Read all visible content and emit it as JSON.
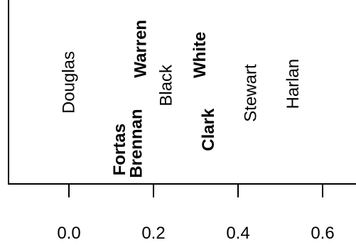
{
  "chart_data": {
    "type": "scatter",
    "title": "",
    "xlabel": "",
    "ylabel": "",
    "xlim": [
      -0.14,
      0.66
    ],
    "x_ticks": [
      0.0,
      0.2,
      0.4,
      0.6
    ],
    "x_tick_labels": [
      "0.0",
      "0.2",
      "0.4",
      "0.6"
    ],
    "grid": false,
    "points": [
      {
        "label": "Douglas",
        "x": 0.0,
        "y": 0.6,
        "bold": false
      },
      {
        "label": "Fortas",
        "x": 0.12,
        "y": 0.16,
        "bold": true
      },
      {
        "label": "Brennan",
        "x": 0.16,
        "y": 0.2,
        "bold": true
      },
      {
        "label": "Warren",
        "x": 0.17,
        "y": 0.82,
        "bold": true
      },
      {
        "label": "Black",
        "x": 0.23,
        "y": 0.58,
        "bold": false
      },
      {
        "label": "White",
        "x": 0.31,
        "y": 0.78,
        "bold": true
      },
      {
        "label": "Clark",
        "x": 0.33,
        "y": 0.29,
        "bold": true
      },
      {
        "label": "Stewart",
        "x": 0.43,
        "y": 0.53,
        "bold": false
      },
      {
        "label": "Harlan",
        "x": 0.53,
        "y": 0.59,
        "bold": false
      }
    ]
  }
}
